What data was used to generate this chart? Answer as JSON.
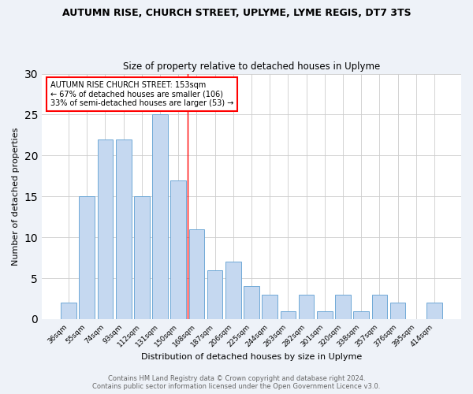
{
  "title": "AUTUMN RISE, CHURCH STREET, UPLYME, LYME REGIS, DT7 3TS",
  "subtitle": "Size of property relative to detached houses in Uplyme",
  "xlabel": "Distribution of detached houses by size in Uplyme",
  "ylabel": "Number of detached properties",
  "categories": [
    "36sqm",
    "55sqm",
    "74sqm",
    "93sqm",
    "112sqm",
    "131sqm",
    "150sqm",
    "168sqm",
    "187sqm",
    "206sqm",
    "225sqm",
    "244sqm",
    "263sqm",
    "282sqm",
    "301sqm",
    "320sqm",
    "338sqm",
    "357sqm",
    "376sqm",
    "395sqm",
    "414sqm"
  ],
  "values": [
    2,
    15,
    22,
    22,
    15,
    25,
    17,
    11,
    6,
    7,
    4,
    3,
    1,
    3,
    1,
    3,
    1,
    3,
    2,
    0,
    2
  ],
  "bar_color": "#c5d8f0",
  "bar_edge_color": "#6fa8d6",
  "red_line_x": 6.5,
  "annotation_title": "AUTUMN RISE CHURCH STREET: 153sqm",
  "annotation_line1": "← 67% of detached houses are smaller (106)",
  "annotation_line2": "33% of semi-detached houses are larger (53) →",
  "footer_line1": "Contains HM Land Registry data © Crown copyright and database right 2024.",
  "footer_line2": "Contains public sector information licensed under the Open Government Licence v3.0.",
  "ylim": [
    0,
    30
  ],
  "yticks": [
    0,
    5,
    10,
    15,
    20,
    25,
    30
  ],
  "bg_color": "#eef2f8",
  "plot_bg_color": "#ffffff",
  "title_fontsize": 9,
  "subtitle_fontsize": 8.5,
  "ylabel_fontsize": 8,
  "xlabel_fontsize": 8,
  "tick_fontsize": 6.5,
  "annotation_fontsize": 7,
  "footer_fontsize": 6
}
